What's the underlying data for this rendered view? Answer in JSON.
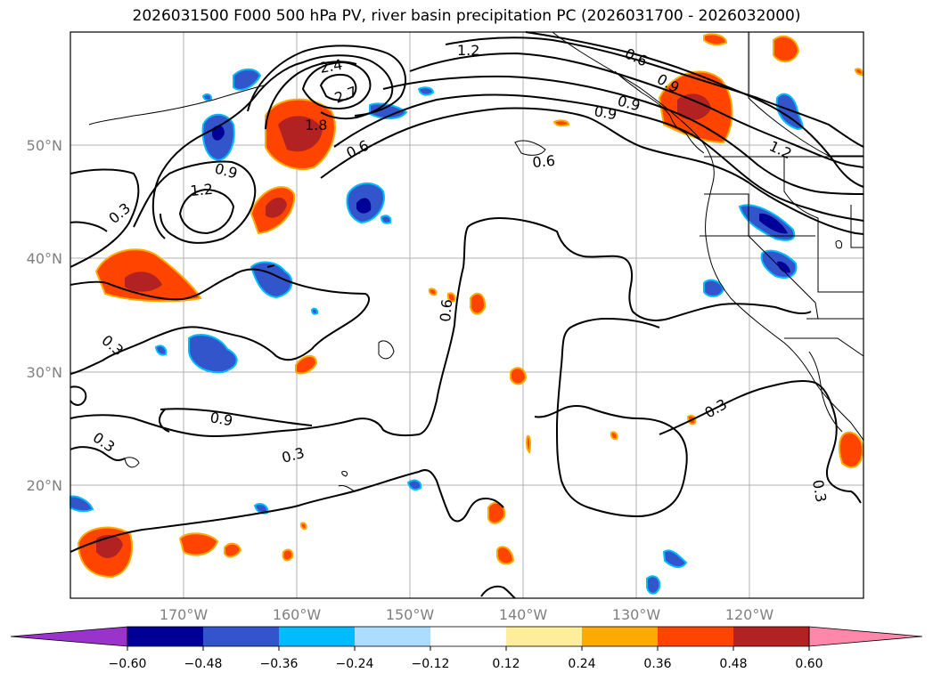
{
  "title": "2026031500 F000 500 hPa PV, river basin precipitation PC (2026031700 - 2026032000)",
  "map": {
    "lat_labels": [
      "50°N",
      "40°N",
      "30°N",
      "20°N"
    ],
    "lon_labels": [
      "170°W",
      "160°W",
      "150°W",
      "140°W",
      "130°W",
      "120°W"
    ],
    "contour_labels": [
      "1.2",
      "0.6",
      "0.9",
      "2.4",
      "2.7",
      "1.8",
      "0.6",
      "0.9",
      "1.2",
      "0.3",
      "0.6",
      "0.6",
      "0.3",
      "0.9",
      "0.3",
      "0.3",
      "0.3",
      "0.9",
      "1.2",
      "0.9",
      "0.3"
    ]
  },
  "colorbar": {
    "tick_labels": [
      "−0.60",
      "−0.48",
      "−0.36",
      "−0.24",
      "−0.12",
      "0.12",
      "0.24",
      "0.36",
      "0.48",
      "0.60"
    ],
    "colors": [
      "#9933cc",
      "#000099",
      "#3355cc",
      "#00bbff",
      "#aaddff",
      "#ffffff",
      "#ffee99",
      "#ffaa00",
      "#ff4400",
      "#b22222",
      "#ff88aa"
    ]
  }
}
